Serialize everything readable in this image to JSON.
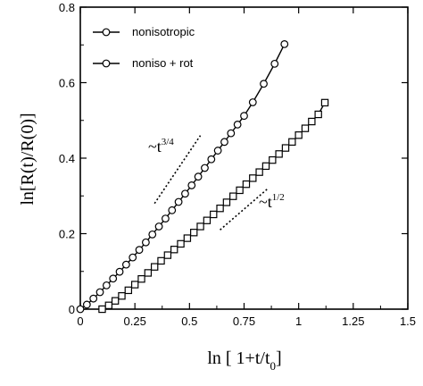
{
  "chart_data": {
    "type": "line",
    "x_axis": {
      "range": [
        0,
        1.5
      ],
      "ticks": [
        0,
        0.25,
        0.5,
        0.75,
        1,
        1.25,
        1.5
      ],
      "tick_labels": [
        "0",
        "0.25",
        "0.5",
        "0.75",
        "1",
        "1.25",
        "1.5"
      ],
      "label_main": "ln [ 1+t/t",
      "label_sub": "0",
      "label_close": "]"
    },
    "y_axis": {
      "range": [
        0,
        0.8
      ],
      "ticks": [
        0,
        0.2,
        0.4,
        0.6,
        0.8
      ],
      "tick_labels": [
        "0",
        "0.2",
        "0.4",
        "0.6",
        "0.8"
      ],
      "label": "ln[R(t)/R(0)]"
    },
    "legend": {
      "placement": "top-left",
      "entries": [
        "nonisotropic",
        "noniso + rot"
      ]
    },
    "series": [
      {
        "name": "nonisotropic",
        "marker": "circle",
        "x": [
          0.0,
          0.03,
          0.06,
          0.09,
          0.12,
          0.15,
          0.18,
          0.21,
          0.24,
          0.27,
          0.3,
          0.33,
          0.36,
          0.39,
          0.42,
          0.45,
          0.48,
          0.51,
          0.54,
          0.57,
          0.6,
          0.63,
          0.66,
          0.69,
          0.72,
          0.75,
          0.79,
          0.84,
          0.89,
          0.935
        ],
        "y": [
          0.0,
          0.012,
          0.028,
          0.045,
          0.063,
          0.081,
          0.099,
          0.118,
          0.137,
          0.157,
          0.177,
          0.198,
          0.219,
          0.24,
          0.262,
          0.284,
          0.306,
          0.328,
          0.351,
          0.374,
          0.397,
          0.42,
          0.443,
          0.466,
          0.489,
          0.512,
          0.548,
          0.597,
          0.65,
          0.702
        ]
      },
      {
        "name": "noniso + rot",
        "marker": "square",
        "x": [
          0.1,
          0.13,
          0.16,
          0.19,
          0.22,
          0.25,
          0.28,
          0.31,
          0.34,
          0.37,
          0.4,
          0.43,
          0.46,
          0.49,
          0.52,
          0.55,
          0.58,
          0.61,
          0.64,
          0.67,
          0.7,
          0.73,
          0.76,
          0.79,
          0.82,
          0.85,
          0.88,
          0.91,
          0.94,
          0.97,
          1.0,
          1.03,
          1.06,
          1.09,
          1.12
        ],
        "y": [
          0.0,
          0.01,
          0.022,
          0.035,
          0.05,
          0.065,
          0.08,
          0.096,
          0.112,
          0.128,
          0.143,
          0.158,
          0.173,
          0.188,
          0.203,
          0.219,
          0.235,
          0.251,
          0.267,
          0.283,
          0.299,
          0.315,
          0.331,
          0.347,
          0.363,
          0.379,
          0.395,
          0.411,
          0.427,
          0.443,
          0.461,
          0.479,
          0.497,
          0.516,
          0.547
        ]
      }
    ],
    "annotations": [
      {
        "text_main": "~t",
        "text_sup": "3/4"
      },
      {
        "text_main": "~t",
        "text_sup": "1/2"
      }
    ],
    "guide_lines": [
      {
        "x": [
          0.34,
          0.55
        ],
        "y": [
          0.28,
          0.46
        ]
      },
      {
        "x": [
          0.64,
          0.86
        ],
        "y": [
          0.21,
          0.32
        ]
      }
    ]
  }
}
